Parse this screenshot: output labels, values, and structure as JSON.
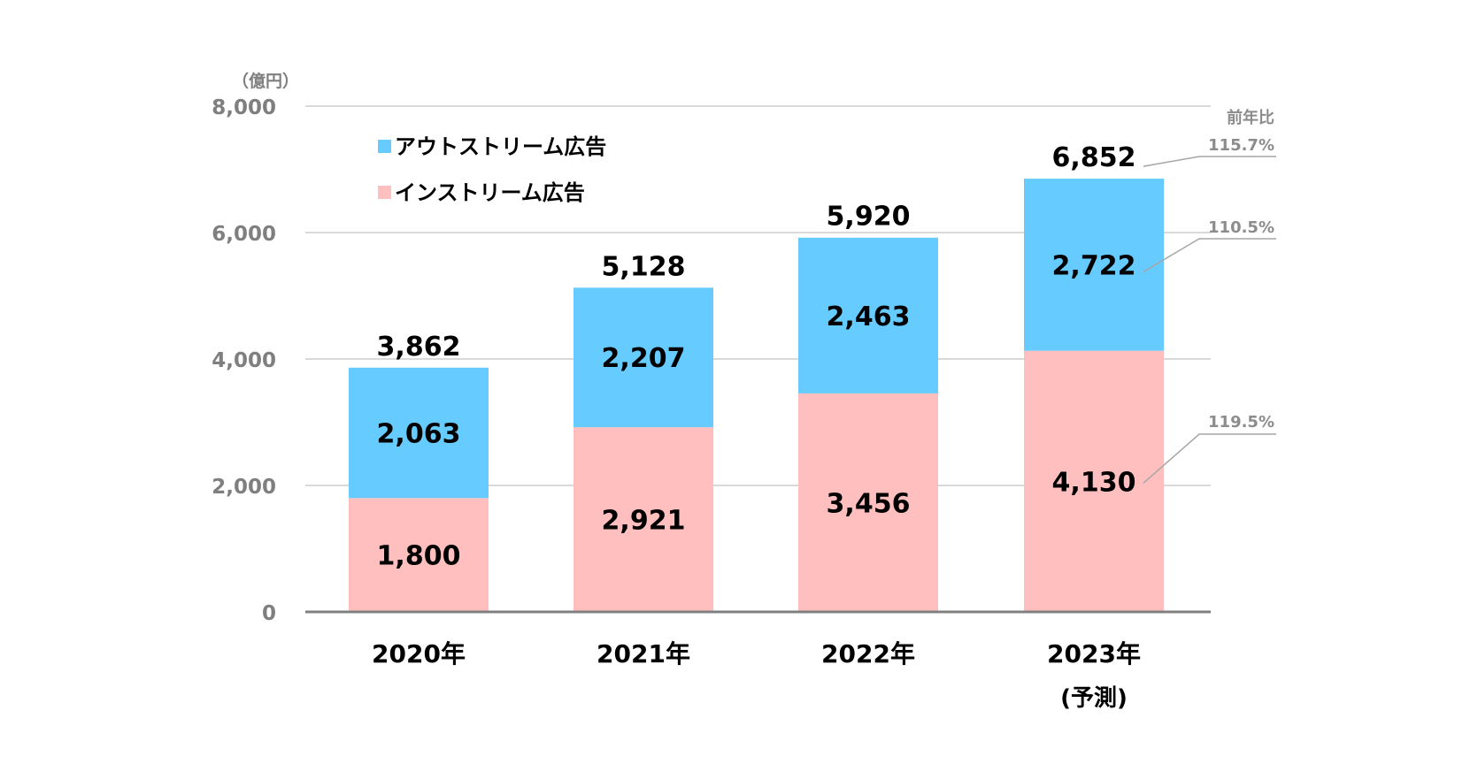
{
  "chart_data": {
    "type": "bar",
    "stacked": true,
    "unit_label": "（億円）",
    "categories": [
      "2020年",
      "2021年",
      "2022年",
      "2023年"
    ],
    "category_sublabels": [
      "",
      "",
      "",
      "(予測)"
    ],
    "series": [
      {
        "name": "インストリーム広告",
        "color": "#FFBFBF",
        "values": [
          1800,
          2921,
          3456,
          4130
        ]
      },
      {
        "name": "アウトストリーム広告",
        "color": "#66CCFF",
        "values": [
          2063,
          2207,
          2463,
          2722
        ]
      }
    ],
    "totals": [
      3862,
      5128,
      5920,
      6852
    ],
    "value_labels": {
      "series": [
        [
          "1,800",
          "2,921",
          "3,456",
          "4,130"
        ],
        [
          "2,063",
          "2,207",
          "2,463",
          "2,722"
        ]
      ],
      "totals": [
        "3,862",
        "5,128",
        "5,920",
        "6,852"
      ]
    },
    "ylim": [
      0,
      8000
    ],
    "yticks": [
      0,
      2000,
      4000,
      6000,
      8000
    ],
    "ytick_labels": [
      "0",
      "2,000",
      "4,000",
      "6,000",
      "8,000"
    ],
    "grid": true,
    "legend_position": "top-left",
    "yoy": {
      "title": "前年比",
      "total": "115.7%",
      "outstream": "110.5%",
      "instream": "119.5%"
    },
    "colors": {
      "grid": "#D9D9D9",
      "axis": "#808080",
      "tick_text": "#7F7F7F",
      "label_text": "#000000",
      "yoy_text": "#8C8C8C",
      "leader_line": "#A6A6A6"
    }
  }
}
